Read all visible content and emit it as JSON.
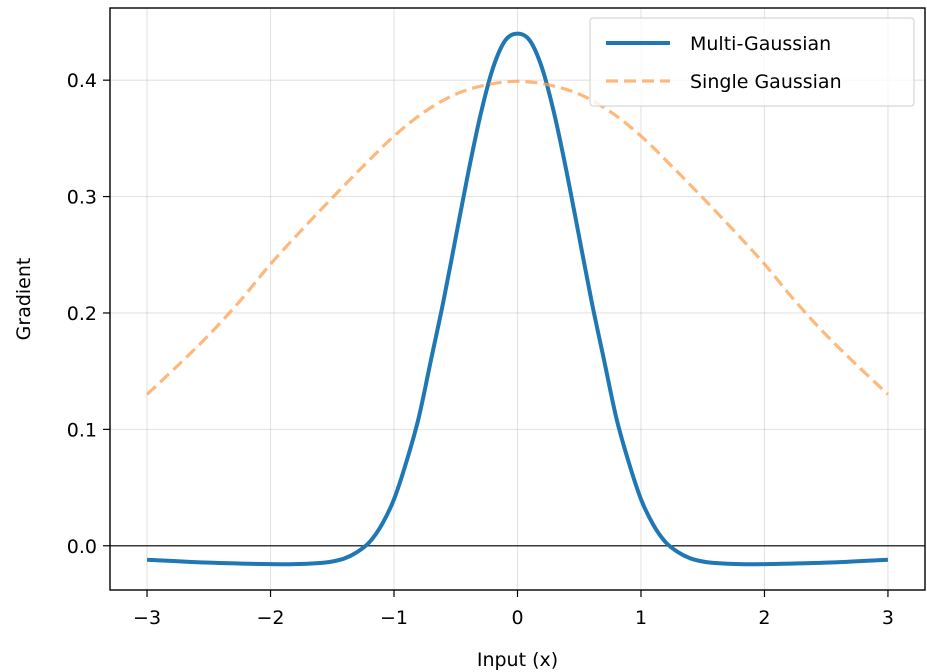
{
  "chart_data": {
    "type": "line",
    "title": "",
    "xlabel": "Input (x)",
    "ylabel": "Gradient",
    "xlim": [
      -3.3,
      3.3
    ],
    "ylim": [
      -0.038,
      0.462
    ],
    "grid": true,
    "legend_position": "top-right",
    "xticks": [
      -3,
      -2,
      -1,
      0,
      1,
      2,
      3
    ],
    "xtick_labels": [
      "−3",
      "−2",
      "−1",
      "0",
      "1",
      "2",
      "3"
    ],
    "yticks": [
      0.0,
      0.1,
      0.2,
      0.3,
      0.4
    ],
    "ytick_labels": [
      "0.0",
      "0.1",
      "0.2",
      "0.3",
      "0.4"
    ],
    "reference_line_y": 0.0,
    "series": [
      {
        "name": "Multi-Gaussian",
        "color": "#1f77b4",
        "style": "solid",
        "x": [
          -3.0,
          -2.5,
          -2.0,
          -1.8,
          -1.6,
          -1.5,
          -1.4,
          -1.3,
          -1.2,
          -1.1,
          -1.0,
          -0.9,
          -0.8,
          -0.7,
          -0.6,
          -0.5,
          -0.4,
          -0.3,
          -0.2,
          -0.1,
          0.0,
          0.1,
          0.2,
          0.3,
          0.4,
          0.5,
          0.6,
          0.7,
          0.8,
          0.9,
          1.0,
          1.1,
          1.2,
          1.3,
          1.4,
          1.5,
          1.6,
          1.8,
          2.0,
          2.5,
          3.0
        ],
        "y": [
          -0.012,
          -0.0145,
          -0.0158,
          -0.0158,
          -0.0148,
          -0.0135,
          -0.0108,
          -0.0055,
          0.003,
          0.018,
          0.04,
          0.072,
          0.11,
          0.16,
          0.21,
          0.265,
          0.32,
          0.37,
          0.41,
          0.434,
          0.44,
          0.434,
          0.41,
          0.37,
          0.32,
          0.265,
          0.21,
          0.16,
          0.11,
          0.072,
          0.04,
          0.018,
          0.003,
          -0.0055,
          -0.0108,
          -0.0135,
          -0.0148,
          -0.0158,
          -0.0158,
          -0.0145,
          -0.012
        ]
      },
      {
        "name": "Single Gaussian",
        "color": "#ffa04f",
        "style": "dashed",
        "x": [
          -3.0,
          -2.75,
          -2.5,
          -2.25,
          -2.0,
          -1.75,
          -1.5,
          -1.25,
          -1.0,
          -0.75,
          -0.5,
          -0.25,
          0.0,
          0.25,
          0.5,
          0.75,
          1.0,
          1.25,
          1.5,
          1.75,
          2.0,
          2.25,
          2.5,
          2.75,
          3.0
        ],
        "y": [
          0.13,
          0.155,
          0.181,
          0.21,
          0.242,
          0.271,
          0.299,
          0.326,
          0.352,
          0.373,
          0.388,
          0.396,
          0.399,
          0.396,
          0.388,
          0.373,
          0.352,
          0.326,
          0.299,
          0.271,
          0.242,
          0.21,
          0.181,
          0.155,
          0.13
        ]
      }
    ]
  }
}
